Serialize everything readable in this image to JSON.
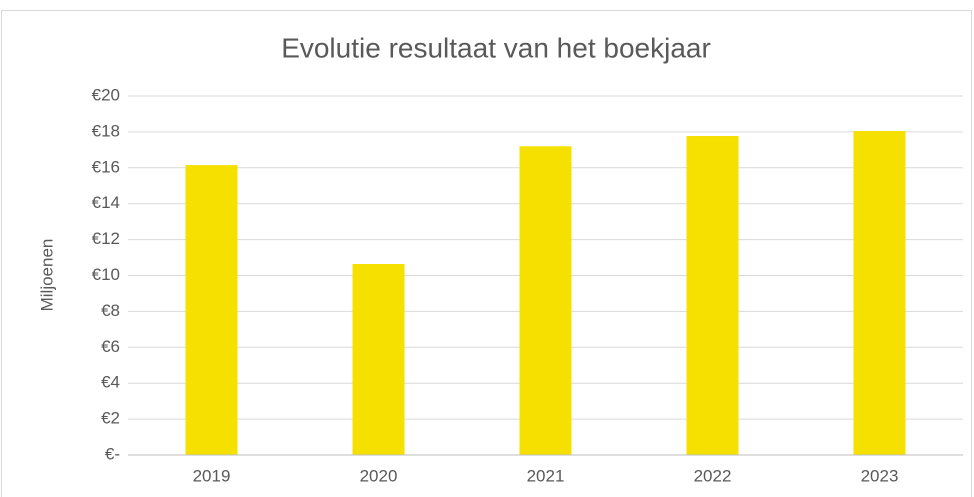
{
  "chart_data": {
    "type": "bar",
    "title": "Evolutie resultaat van het boekjaar",
    "y_label": "Miljoenen",
    "categories": [
      "2019",
      "2020",
      "2021",
      "2022",
      "2023"
    ],
    "values": [
      16.15,
      10.64,
      17.2,
      17.77,
      18.05
    ],
    "color": "#f5e000",
    "ylim": [
      0,
      20
    ],
    "yticks": [
      {
        "value": 0,
        "label": "€-"
      },
      {
        "value": 2,
        "label": "€2"
      },
      {
        "value": 4,
        "label": "€4"
      },
      {
        "value": 6,
        "label": "€6"
      },
      {
        "value": 8,
        "label": "€8"
      },
      {
        "value": 10,
        "label": "€10"
      },
      {
        "value": 12,
        "label": "€12"
      },
      {
        "value": 14,
        "label": "€14"
      },
      {
        "value": 16,
        "label": "€16"
      },
      {
        "value": 18,
        "label": "€18"
      },
      {
        "value": 20,
        "label": "€20"
      }
    ],
    "grid": true
  }
}
